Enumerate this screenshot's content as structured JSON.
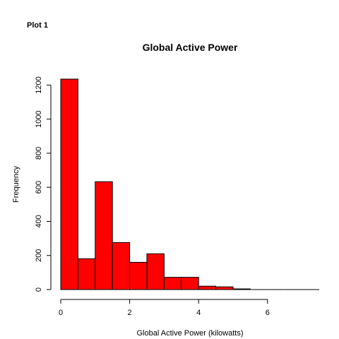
{
  "page": {
    "heading": "Plot 1"
  },
  "chart_data": {
    "type": "bar",
    "title": "Global Active Power",
    "xlabel": "Global Active Power (kilowatts)",
    "ylabel": "Frequency",
    "bar_color": "#ff0000",
    "bar_border_color": "#000000",
    "bin_width": 0.5,
    "bin_starts": [
      0,
      0.5,
      1,
      1.5,
      2,
      2.5,
      3,
      3.5,
      4,
      4.5,
      5,
      5.5,
      6,
      6.5,
      7
    ],
    "values": [
      1235,
      181,
      633,
      276,
      160,
      210,
      72,
      72,
      20,
      16,
      4,
      0,
      0,
      0,
      0
    ],
    "xlim": [
      0,
      7.5
    ],
    "ylim": [
      0,
      1235
    ],
    "x_ticks": [
      0,
      2,
      4,
      6
    ],
    "x_tick_labels": [
      "0",
      "2",
      "4",
      "6"
    ],
    "y_ticks": [
      0,
      200,
      400,
      600,
      800,
      1000,
      1200
    ],
    "y_tick_labels": [
      "0",
      "200",
      "400",
      "600",
      "800",
      "1000",
      "1200"
    ],
    "grid": false,
    "legend": "none"
  }
}
